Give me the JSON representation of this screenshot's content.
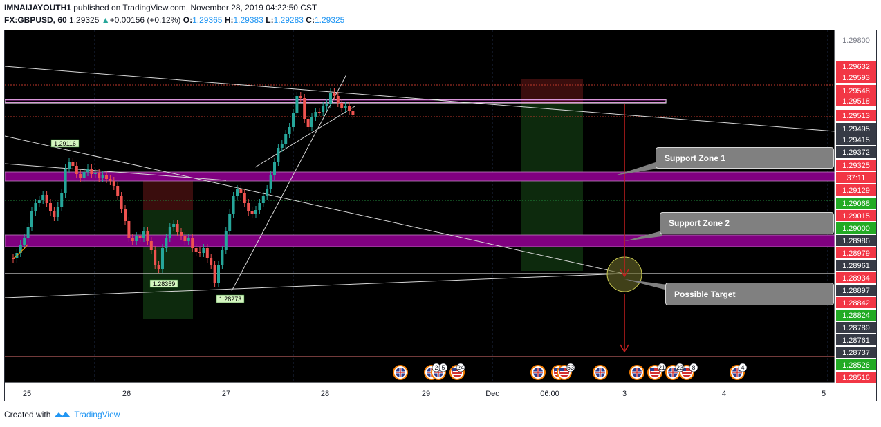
{
  "header": {
    "author": "IMNAIJAYOUTH1",
    "published": " published on TradingView.com, November 28, 2019 04:22:50 CST",
    "symbol": "FX:GBPUSD, 60",
    "last": "1.29325",
    "change": "+0.00156 (+0.12%)",
    "o_label": "O:",
    "o_val": "1.29365",
    "h_label": "H:",
    "h_val": "1.29383",
    "l_label": "L:",
    "l_val": "1.29283",
    "c_label": "C:",
    "c_val": "1.29325"
  },
  "price_axis": [
    {
      "label": "1.29800",
      "kind": "plain"
    },
    {
      "label": "1.29632",
      "kind": "red"
    },
    {
      "label": "1.29593",
      "kind": "red"
    },
    {
      "label": "1.29548",
      "kind": "red"
    },
    {
      "label": "1.29518",
      "kind": "red"
    },
    {
      "label": "1.29513",
      "kind": "red"
    },
    {
      "label": "1.29495",
      "kind": "gray"
    },
    {
      "label": "1.29415",
      "kind": "gray"
    },
    {
      "label": "1.29372",
      "kind": "gray"
    },
    {
      "label": "1.29325",
      "kind": "red"
    },
    {
      "label": "37:11",
      "kind": "red"
    },
    {
      "label": "1.29129",
      "kind": "red"
    },
    {
      "label": "1.29068",
      "kind": "green"
    },
    {
      "label": "1.29015",
      "kind": "red"
    },
    {
      "label": "1.29000",
      "kind": "green"
    },
    {
      "label": "1.28986",
      "kind": "gray"
    },
    {
      "label": "1.28979",
      "kind": "red"
    },
    {
      "label": "1.28961",
      "kind": "gray"
    },
    {
      "label": "1.28934",
      "kind": "red"
    },
    {
      "label": "1.28897",
      "kind": "gray"
    },
    {
      "label": "1.28842",
      "kind": "red"
    },
    {
      "label": "1.28824",
      "kind": "green"
    },
    {
      "label": "1.28789",
      "kind": "gray"
    },
    {
      "label": "1.28761",
      "kind": "gray"
    },
    {
      "label": "1.28737",
      "kind": "gray"
    },
    {
      "label": "1.28526",
      "kind": "green"
    },
    {
      "label": "1.28516",
      "kind": "red"
    }
  ],
  "time_axis": [
    "25",
    "26",
    "27",
    "28",
    "29",
    "Dec",
    "06:00",
    "3",
    "4",
    "5"
  ],
  "price_markers": [
    "1.29116",
    "1.28359",
    "1.28273"
  ],
  "callouts": {
    "zone1": "Support Zone 1",
    "zone2": "Support Zone 2",
    "target": "Possible Target"
  },
  "event_counts": [
    "2",
    "5",
    "24",
    "53",
    "21",
    "23",
    "8",
    "4"
  ],
  "footer": {
    "created": "Created with",
    "brand": "TradingView"
  },
  "colors": {
    "up": "#26a69a",
    "down": "#ef5350",
    "zone": "#800080",
    "arrow": "#c21f1f",
    "axis_red": "#f23645",
    "axis_green": "#22ab24",
    "axis_gray": "#363a45"
  }
}
